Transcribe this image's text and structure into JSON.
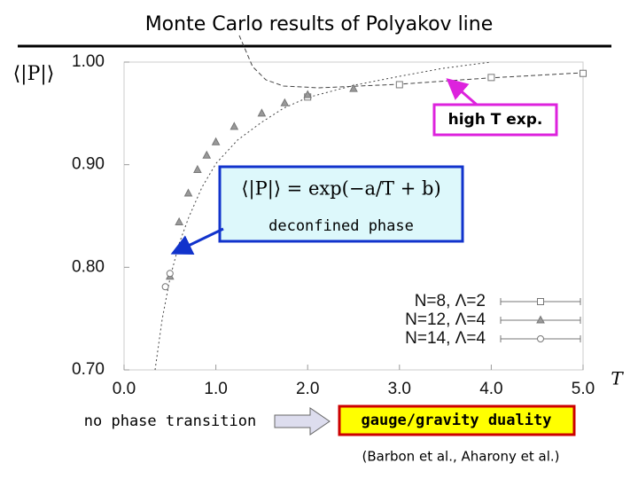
{
  "chart_data": {
    "type": "scatter",
    "title": "Monte Carlo results of Polyakov line",
    "x_label": "T",
    "y_label": "⟨|P|⟩",
    "xlim": [
      0,
      5
    ],
    "ylim": [
      0.7,
      1.0
    ],
    "xticks": [
      {
        "value": 0,
        "label": "0.0"
      },
      {
        "value": 1,
        "label": "1.0"
      },
      {
        "value": 2,
        "label": "2.0"
      },
      {
        "value": 3,
        "label": "3.0"
      },
      {
        "value": 4,
        "label": "4.0"
      },
      {
        "value": 5,
        "label": "5.0"
      }
    ],
    "yticks": [
      {
        "value": 0.7,
        "label": "0.70"
      },
      {
        "value": 0.8,
        "label": "0.80"
      },
      {
        "value": 0.9,
        "label": "0.90"
      },
      {
        "value": 1.0,
        "label": "1.00"
      }
    ],
    "series": [
      {
        "name": "N=8, Λ=2",
        "color": "#777777",
        "marker": "square",
        "x": [
          2.0,
          3.0,
          4.0,
          5.0
        ],
        "values": [
          0.966,
          0.978,
          0.985,
          0.989
        ]
      },
      {
        "name": "N=12, Λ=4",
        "color": "#777777",
        "marker": "triangle",
        "x": [
          0.5,
          0.6,
          0.7,
          0.8,
          0.9,
          1.0,
          1.2,
          1.5,
          1.75,
          2.0,
          2.5
        ],
        "values": [
          0.791,
          0.844,
          0.872,
          0.895,
          0.909,
          0.922,
          0.937,
          0.95,
          0.96,
          0.968,
          0.974
        ]
      },
      {
        "name": "N=14, Λ=4",
        "color": "#777777",
        "marker": "circle",
        "x": [
          0.45,
          0.5
        ],
        "values": [
          0.781,
          0.794
        ]
      }
    ]
  },
  "annotations": {
    "high_t": "high T exp.",
    "formula": "⟨|P|⟩ = exp(−a/T + b)",
    "deconfined": "deconfined phase",
    "no_transition": "no phase transition",
    "duality": "gauge/gravity duality",
    "citation": "(Barbon et al., Aharony et al.)"
  }
}
